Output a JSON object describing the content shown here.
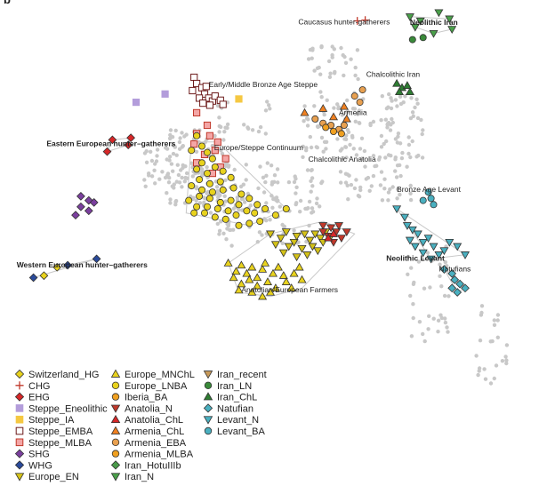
{
  "panel_label": "b",
  "chart_data": {
    "type": "scatter",
    "title": "",
    "xlabel": "",
    "ylabel": "",
    "grid": false,
    "legend_position": "bottom-left",
    "background_color": "#c8c8c8",
    "hull_color": "#c8c8c8",
    "annotations": [
      {
        "id": "caucasus",
        "text": "Caucasus hunter-gatherers",
        "bold": false,
        "x": 0.553,
        "y": 0.942
      },
      {
        "id": "neolithic_iran",
        "text": "Neolithic Iran",
        "bold": true,
        "x": 0.765,
        "y": 0.94
      },
      {
        "id": "early_bronze",
        "text": "Early/Middle Bronze Age Steppe",
        "bold": false,
        "x": 0.383,
        "y": 0.792
      },
      {
        "id": "chalco_iran",
        "text": "Chalcolithic Iran",
        "bold": false,
        "x": 0.682,
        "y": 0.816
      },
      {
        "id": "armenia",
        "text": "Armenia",
        "bold": false,
        "x": 0.63,
        "y": 0.725
      },
      {
        "id": "eastern_hg",
        "text": "Eastern European hunter–gatherers",
        "bold": true,
        "x": 0.075,
        "y": 0.65
      },
      {
        "id": "europe_steppe",
        "text": "Europe/Steppe Continuum",
        "bold": false,
        "x": 0.393,
        "y": 0.64
      },
      {
        "id": "chalco_anatolia",
        "text": "Chalcolithic Anatolia",
        "bold": false,
        "x": 0.572,
        "y": 0.613
      },
      {
        "id": "bronze_levant",
        "text": "Bronze Age Levant",
        "bold": false,
        "x": 0.74,
        "y": 0.54
      },
      {
        "id": "neolithic_levant",
        "text": "Neolithic Levant",
        "bold": true,
        "x": 0.72,
        "y": 0.376
      },
      {
        "id": "natufians",
        "text": "Natufians",
        "bold": false,
        "x": 0.82,
        "y": 0.35
      },
      {
        "id": "western_hg",
        "text": "Western European hunter–gatherers",
        "bold": true,
        "x": 0.018,
        "y": 0.36
      },
      {
        "id": "anatolian_farmers",
        "text": "Anatolian/European Farmers",
        "bold": false,
        "x": 0.445,
        "y": 0.3
      }
    ],
    "series": [
      {
        "name": "Switzerland_HG",
        "marker": "diamond",
        "color": "#e8d21d",
        "points": [
          [
            0.07,
            0.34
          ],
          [
            0.095,
            0.36
          ]
        ]
      },
      {
        "name": "CHG",
        "marker": "plus",
        "color": "#c0392b",
        "points": [
          [
            0.665,
            0.95
          ],
          [
            0.68,
            0.952
          ]
        ]
      },
      {
        "name": "EHG",
        "marker": "diamond",
        "color": "#d62728",
        "points": [
          [
            0.2,
            0.665
          ],
          [
            0.235,
            0.67
          ],
          [
            0.19,
            0.637
          ],
          [
            0.23,
            0.653
          ]
        ]
      },
      {
        "name": "Steppe_Eneolithic",
        "marker": "square",
        "color": "#b39ddb",
        "points": [
          [
            0.3,
            0.775
          ],
          [
            0.245,
            0.755
          ]
        ]
      },
      {
        "name": "Steppe_IA",
        "marker": "square",
        "color": "#f5c842",
        "points": [
          [
            0.44,
            0.763
          ]
        ]
      },
      {
        "name": "Steppe_EMBA",
        "marker": "square",
        "color": "#6d1b1b",
        "fill": "#ffffff",
        "points": [
          [
            0.355,
            0.815
          ],
          [
            0.36,
            0.8
          ],
          [
            0.37,
            0.79
          ],
          [
            0.375,
            0.775
          ],
          [
            0.383,
            0.765
          ],
          [
            0.39,
            0.758
          ],
          [
            0.365,
            0.765
          ],
          [
            0.395,
            0.77
          ],
          [
            0.405,
            0.76
          ],
          [
            0.378,
            0.793
          ],
          [
            0.352,
            0.783
          ],
          [
            0.41,
            0.75
          ],
          [
            0.385,
            0.748
          ],
          [
            0.372,
            0.753
          ]
        ]
      },
      {
        "name": "Steppe_MLBA",
        "marker": "square",
        "color": "#c0392b",
        "fill": "#f4a6a6",
        "points": [
          [
            0.36,
            0.73
          ],
          [
            0.38,
            0.7
          ],
          [
            0.36,
            0.68
          ],
          [
            0.355,
            0.655
          ],
          [
            0.375,
            0.63
          ],
          [
            0.395,
            0.64
          ],
          [
            0.415,
            0.62
          ],
          [
            0.405,
            0.6
          ],
          [
            0.39,
            0.585
          ],
          [
            0.36,
            0.61
          ],
          [
            0.4,
            0.66
          ],
          [
            0.385,
            0.675
          ]
        ]
      },
      {
        "name": "SHG",
        "marker": "diamond",
        "color": "#7b3f9e",
        "points": [
          [
            0.14,
            0.53
          ],
          [
            0.155,
            0.52
          ],
          [
            0.14,
            0.505
          ],
          [
            0.155,
            0.495
          ],
          [
            0.165,
            0.515
          ],
          [
            0.13,
            0.485
          ]
        ]
      },
      {
        "name": "WHG",
        "marker": "diamond",
        "color": "#2a4a9a",
        "points": [
          [
            0.05,
            0.335
          ],
          [
            0.115,
            0.365
          ],
          [
            0.17,
            0.38
          ]
        ]
      },
      {
        "name": "Europe_EN",
        "marker": "triangle-down",
        "color": "#d4c218",
        "points": [
          [
            0.5,
            0.44
          ],
          [
            0.52,
            0.43
          ],
          [
            0.53,
            0.445
          ],
          [
            0.545,
            0.42
          ],
          [
            0.55,
            0.435
          ],
          [
            0.565,
            0.44
          ],
          [
            0.575,
            0.425
          ],
          [
            0.585,
            0.44
          ],
          [
            0.595,
            0.43
          ],
          [
            0.605,
            0.445
          ],
          [
            0.535,
            0.41
          ],
          [
            0.56,
            0.405
          ],
          [
            0.58,
            0.41
          ],
          [
            0.6,
            0.42
          ],
          [
            0.615,
            0.435
          ],
          [
            0.525,
            0.395
          ],
          [
            0.57,
            0.39
          ],
          [
            0.59,
            0.4
          ],
          [
            0.51,
            0.415
          ],
          [
            0.55,
            0.385
          ]
        ]
      },
      {
        "name": "Europe_MNChL",
        "marker": "triangle",
        "color": "#e8d21d",
        "points": [
          [
            0.42,
            0.37
          ],
          [
            0.435,
            0.35
          ],
          [
            0.445,
            0.365
          ],
          [
            0.455,
            0.345
          ],
          [
            0.465,
            0.36
          ],
          [
            0.475,
            0.335
          ],
          [
            0.485,
            0.355
          ],
          [
            0.49,
            0.37
          ],
          [
            0.505,
            0.345
          ],
          [
            0.515,
            0.36
          ],
          [
            0.525,
            0.34
          ],
          [
            0.43,
            0.335
          ],
          [
            0.445,
            0.32
          ],
          [
            0.46,
            0.33
          ],
          [
            0.475,
            0.315
          ],
          [
            0.495,
            0.325
          ],
          [
            0.51,
            0.31
          ],
          [
            0.44,
            0.305
          ],
          [
            0.465,
            0.3
          ],
          [
            0.53,
            0.325
          ],
          [
            0.545,
            0.345
          ],
          [
            0.555,
            0.36
          ],
          [
            0.54,
            0.31
          ],
          [
            0.56,
            0.33
          ],
          [
            0.485,
            0.29
          ],
          [
            0.5,
            0.3
          ]
        ]
      },
      {
        "name": "Europe_LNBA",
        "marker": "circle",
        "color": "#e8d21d",
        "points": [
          [
            0.37,
            0.65
          ],
          [
            0.38,
            0.635
          ],
          [
            0.39,
            0.62
          ],
          [
            0.37,
            0.61
          ],
          [
            0.36,
            0.595
          ],
          [
            0.38,
            0.585
          ],
          [
            0.395,
            0.6
          ],
          [
            0.41,
            0.59
          ],
          [
            0.425,
            0.575
          ],
          [
            0.405,
            0.565
          ],
          [
            0.385,
            0.56
          ],
          [
            0.365,
            0.57
          ],
          [
            0.35,
            0.555
          ],
          [
            0.37,
            0.545
          ],
          [
            0.39,
            0.54
          ],
          [
            0.41,
            0.545
          ],
          [
            0.43,
            0.55
          ],
          [
            0.445,
            0.535
          ],
          [
            0.425,
            0.52
          ],
          [
            0.405,
            0.515
          ],
          [
            0.385,
            0.525
          ],
          [
            0.365,
            0.53
          ],
          [
            0.345,
            0.52
          ],
          [
            0.36,
            0.505
          ],
          [
            0.38,
            0.505
          ],
          [
            0.4,
            0.5
          ],
          [
            0.42,
            0.495
          ],
          [
            0.44,
            0.51
          ],
          [
            0.46,
            0.525
          ],
          [
            0.475,
            0.51
          ],
          [
            0.455,
            0.495
          ],
          [
            0.435,
            0.485
          ],
          [
            0.415,
            0.475
          ],
          [
            0.395,
            0.48
          ],
          [
            0.375,
            0.49
          ],
          [
            0.355,
            0.49
          ],
          [
            0.47,
            0.49
          ],
          [
            0.49,
            0.5
          ],
          [
            0.51,
            0.485
          ],
          [
            0.48,
            0.47
          ],
          [
            0.46,
            0.465
          ],
          [
            0.44,
            0.46
          ],
          [
            0.53,
            0.5
          ],
          [
            0.36,
            0.675
          ],
          [
            0.35,
            0.64
          ]
        ]
      },
      {
        "name": "Iberia_BA",
        "marker": "circle",
        "color": "#f0a020",
        "points": []
      },
      {
        "name": "Anatolia_N",
        "marker": "triangle-down",
        "color": "#c0392b",
        "points": [
          [
            0.6,
            0.46
          ],
          [
            0.615,
            0.455
          ],
          [
            0.625,
            0.445
          ],
          [
            0.635,
            0.43
          ],
          [
            0.62,
            0.42
          ],
          [
            0.61,
            0.435
          ],
          [
            0.6,
            0.445
          ],
          [
            0.63,
            0.46
          ],
          [
            0.645,
            0.445
          ]
        ]
      },
      {
        "name": "Anatolia_ChL",
        "marker": "triangle",
        "color": "#d62728",
        "points": [
          [
            0.62,
            0.44
          ],
          [
            0.61,
            0.43
          ]
        ]
      },
      {
        "name": "Armenia_ChL",
        "marker": "triangle",
        "color": "#f08020",
        "points": [
          [
            0.565,
            0.73
          ],
          [
            0.6,
            0.74
          ],
          [
            0.62,
            0.72
          ],
          [
            0.64,
            0.745
          ],
          [
            0.645,
            0.715
          ]
        ]
      },
      {
        "name": "Armenia_EBA",
        "marker": "circle",
        "color": "#e8a050",
        "points": [
          [
            0.585,
            0.715
          ],
          [
            0.6,
            0.705
          ],
          [
            0.615,
            0.7
          ],
          [
            0.63,
            0.69
          ],
          [
            0.64,
            0.7
          ],
          [
            0.67,
            0.755
          ],
          [
            0.66,
            0.77
          ],
          [
            0.675,
            0.785
          ]
        ]
      },
      {
        "name": "Armenia_MLBA",
        "marker": "circle",
        "color": "#f0a020",
        "points": [
          [
            0.605,
            0.695
          ],
          [
            0.62,
            0.685
          ],
          [
            0.635,
            0.68
          ]
        ]
      },
      {
        "name": "Iran_HotuIIIb",
        "marker": "diamond",
        "color": "#4a9a4a",
        "points": []
      },
      {
        "name": "Iran_N",
        "marker": "triangle-down",
        "color": "#4aa04a",
        "points": [
          [
            0.765,
            0.96
          ],
          [
            0.785,
            0.95
          ],
          [
            0.82,
            0.97
          ],
          [
            0.84,
            0.955
          ],
          [
            0.845,
            0.93
          ],
          [
            0.775,
            0.935
          ],
          [
            0.81,
            0.92
          ]
        ]
      },
      {
        "name": "Iran_recent",
        "marker": "triangle-down",
        "color": "#c89a5a",
        "points": []
      },
      {
        "name": "Iran_LN",
        "marker": "circle",
        "color": "#3a8a3a",
        "points": [
          [
            0.77,
            0.905
          ],
          [
            0.79,
            0.91
          ]
        ]
      },
      {
        "name": "Iran_ChL",
        "marker": "triangle",
        "color": "#2e7d32",
        "points": [
          [
            0.74,
            0.8
          ],
          [
            0.75,
            0.79
          ],
          [
            0.76,
            0.795
          ],
          [
            0.745,
            0.78
          ],
          [
            0.765,
            0.78
          ]
        ]
      },
      {
        "name": "Natufian",
        "marker": "diamond",
        "color": "#4ab0c0",
        "points": [
          [
            0.83,
            0.355
          ],
          [
            0.845,
            0.345
          ],
          [
            0.85,
            0.33
          ],
          [
            0.86,
            0.32
          ],
          [
            0.845,
            0.31
          ],
          [
            0.855,
            0.3
          ],
          [
            0.87,
            0.31
          ]
        ]
      },
      {
        "name": "Levant_N",
        "marker": "triangle-down",
        "color": "#4ab0c0",
        "points": [
          [
            0.74,
            0.5
          ],
          [
            0.755,
            0.48
          ],
          [
            0.76,
            0.46
          ],
          [
            0.77,
            0.45
          ],
          [
            0.78,
            0.44
          ],
          [
            0.765,
            0.425
          ],
          [
            0.775,
            0.41
          ],
          [
            0.79,
            0.42
          ],
          [
            0.8,
            0.43
          ],
          [
            0.81,
            0.41
          ],
          [
            0.79,
            0.395
          ],
          [
            0.82,
            0.39
          ],
          [
            0.83,
            0.4
          ],
          [
            0.805,
            0.38
          ],
          [
            0.84,
            0.42
          ],
          [
            0.855,
            0.41
          ],
          [
            0.87,
            0.39
          ]
        ]
      },
      {
        "name": "Levant_BA",
        "marker": "circle",
        "color": "#4ab0c0",
        "points": [
          [
            0.79,
            0.52
          ],
          [
            0.805,
            0.525
          ],
          [
            0.81,
            0.51
          ],
          [
            0.8,
            0.54
          ]
        ]
      }
    ]
  }
}
